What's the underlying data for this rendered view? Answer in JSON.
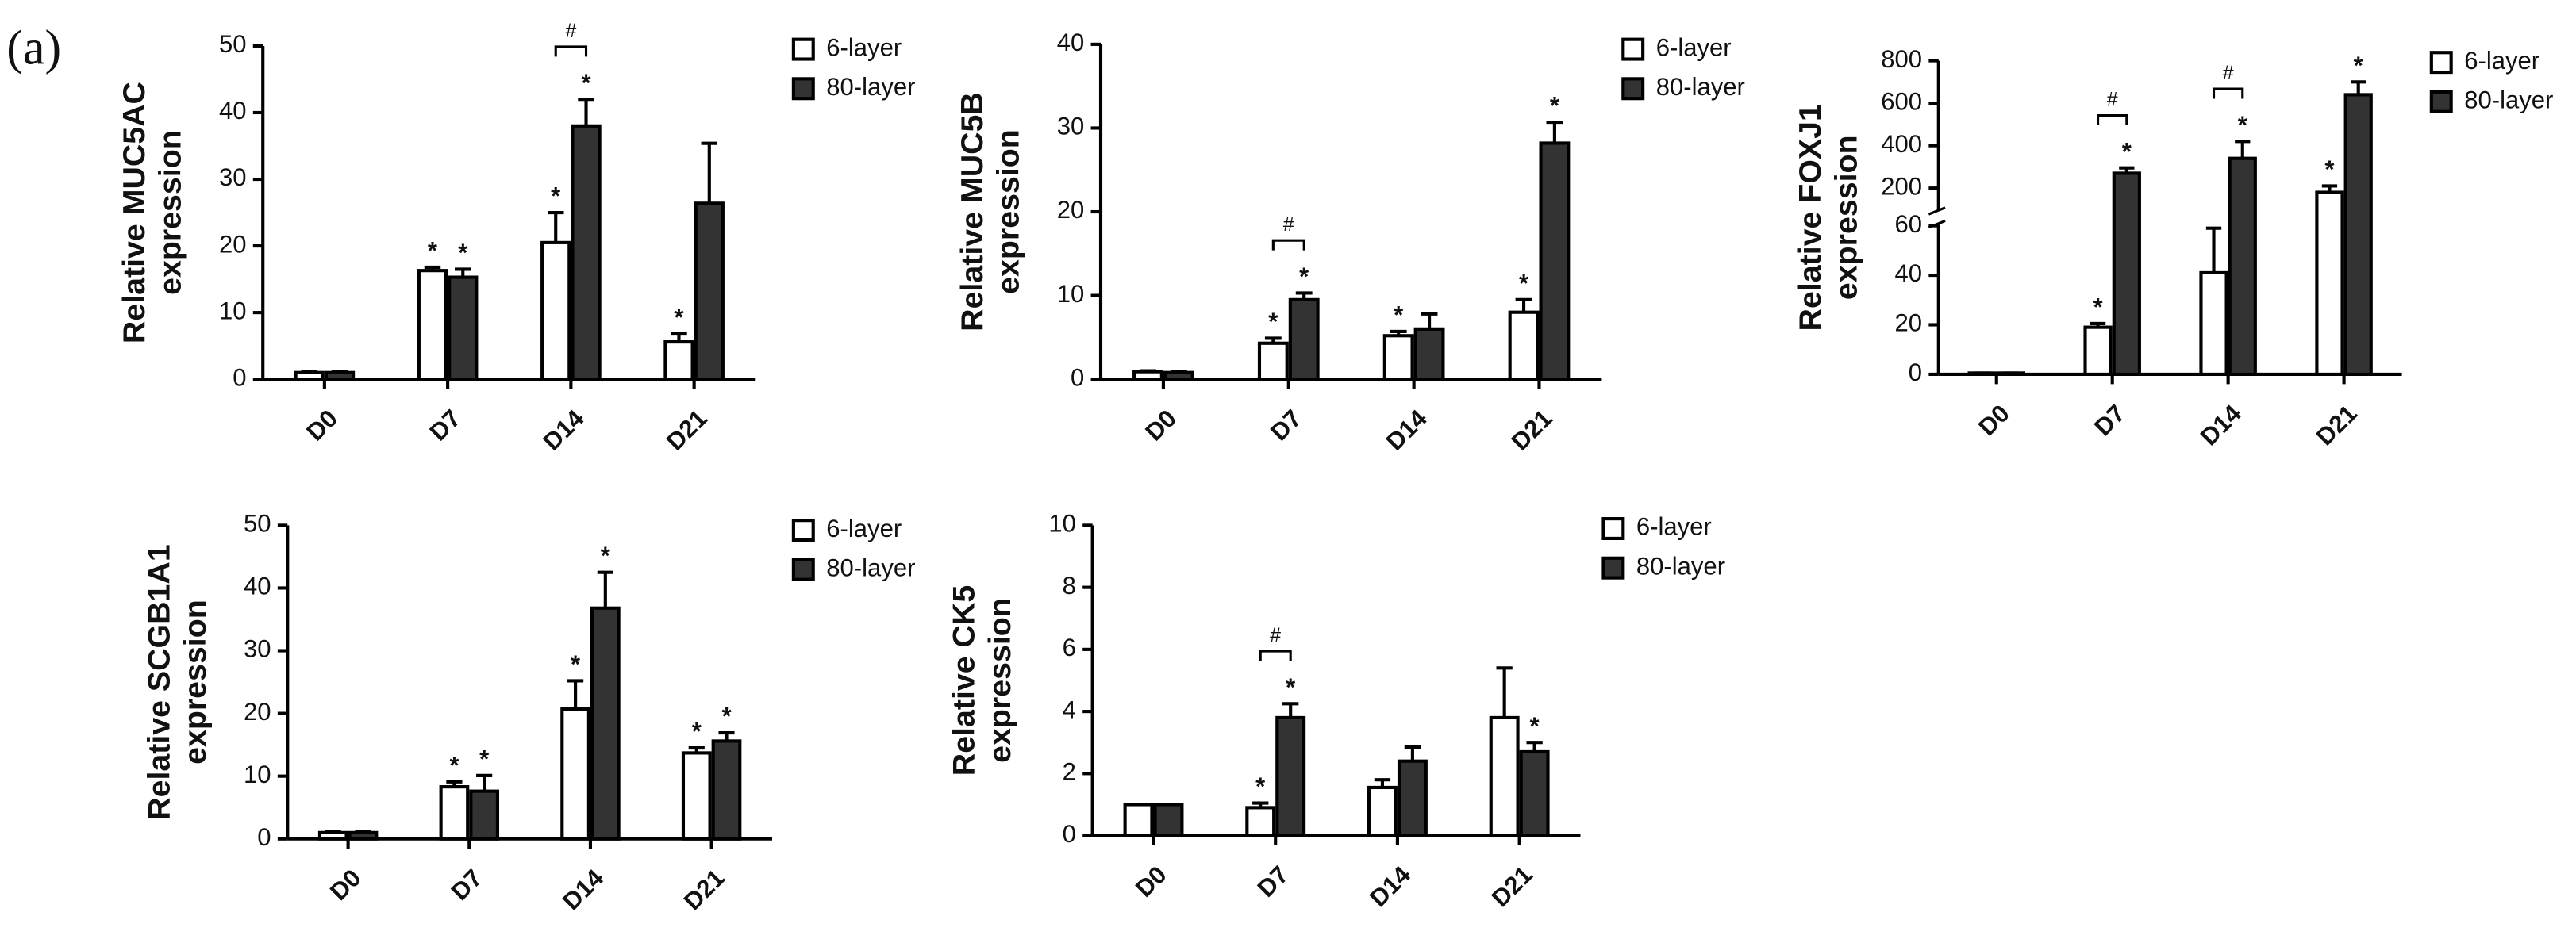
{
  "panel_label": "(a)",
  "chart_data": [
    {
      "type": "bar",
      "ylabel": [
        "Relative MUC5AC",
        "expression"
      ],
      "categories": [
        "D0",
        "D7",
        "D14",
        "D21"
      ],
      "ylim": [
        0,
        50
      ],
      "yticks": [
        0,
        10,
        20,
        30,
        40,
        50
      ],
      "series": [
        {
          "name": "6-layer",
          "color": "#ffffff",
          "values": [
            1,
            16.3,
            20.5,
            5.6
          ],
          "errors": [
            0.1,
            0.5,
            4.5,
            1.2
          ],
          "marks": [
            null,
            "*",
            "*",
            "*"
          ]
        },
        {
          "name": "80-layer",
          "color": "#333333",
          "values": [
            1,
            15.3,
            38,
            26.4
          ],
          "errors": [
            0.1,
            1.2,
            4,
            9
          ],
          "marks": [
            null,
            "*",
            "*",
            null
          ]
        }
      ],
      "significance": [
        {
          "category": 2,
          "label": "#"
        }
      ]
    },
    {
      "type": "bar",
      "ylabel": [
        "Relative MUC5B",
        "expression"
      ],
      "categories": [
        "D0",
        "D7",
        "D14",
        "D21"
      ],
      "ylim": [
        0,
        40
      ],
      "yticks": [
        0,
        10,
        20,
        30,
        40
      ],
      "series": [
        {
          "name": "6-layer",
          "color": "#ffffff",
          "values": [
            0.9,
            4.3,
            5.2,
            8
          ],
          "errors": [
            0.1,
            0.6,
            0.5,
            1.5
          ],
          "marks": [
            null,
            "*",
            "*",
            "*"
          ]
        },
        {
          "name": "80-layer",
          "color": "#333333",
          "values": [
            0.8,
            9.5,
            6,
            28.2
          ],
          "errors": [
            0.1,
            0.8,
            1.8,
            2.5
          ],
          "marks": [
            null,
            "*",
            null,
            "*"
          ]
        }
      ],
      "significance": [
        {
          "category": 1,
          "label": "#"
        }
      ]
    },
    {
      "type": "bar",
      "ylabel": [
        "Relative FOXJ1",
        "expression"
      ],
      "categories": [
        "D0",
        "D7",
        "D14",
        "D21"
      ],
      "ylim": [
        0,
        800
      ],
      "axis_break": [
        60,
        100
      ],
      "yticks": [
        0,
        20,
        40,
        60,
        200,
        400,
        600,
        800
      ],
      "series": [
        {
          "name": "6-layer",
          "color": "#ffffff",
          "values": [
            0.5,
            19,
            41,
            180
          ],
          "errors": [
            0,
            1.5,
            18,
            30
          ],
          "marks": [
            null,
            "*",
            null,
            "*"
          ]
        },
        {
          "name": "80-layer",
          "color": "#333333",
          "values": [
            0.5,
            270,
            340,
            640
          ],
          "errors": [
            0,
            25,
            80,
            60
          ],
          "marks": [
            null,
            "*",
            "*",
            "*"
          ]
        }
      ],
      "significance": [
        {
          "category": 1,
          "label": "#"
        },
        {
          "category": 2,
          "label": "#"
        }
      ]
    },
    {
      "type": "bar",
      "ylabel": [
        "Relative SCGB1A1",
        "expression"
      ],
      "categories": [
        "D0",
        "D7",
        "D14",
        "D21"
      ],
      "ylim": [
        0,
        50
      ],
      "yticks": [
        0,
        10,
        20,
        30,
        40,
        50
      ],
      "series": [
        {
          "name": "6-layer",
          "color": "#ffffff",
          "values": [
            1,
            8.3,
            20.7,
            13.7
          ],
          "errors": [
            0.1,
            0.8,
            4.5,
            0.8
          ],
          "marks": [
            null,
            "*",
            "*",
            "*"
          ]
        },
        {
          "name": "80-layer",
          "color": "#333333",
          "values": [
            1,
            7.6,
            36.8,
            15.6
          ],
          "errors": [
            0.1,
            2.5,
            5.7,
            1.3
          ],
          "marks": [
            null,
            "*",
            "*",
            "*"
          ]
        }
      ],
      "significance": []
    },
    {
      "type": "bar",
      "ylabel": [
        "Relative CK5",
        "expression"
      ],
      "categories": [
        "D0",
        "D7",
        "D14",
        "D21"
      ],
      "ylim": [
        0,
        10
      ],
      "yticks": [
        0,
        2,
        4,
        6,
        8,
        10
      ],
      "series": [
        {
          "name": "6-layer",
          "color": "#ffffff",
          "values": [
            1,
            0.9,
            1.55,
            3.8
          ],
          "errors": [
            0,
            0.15,
            0.25,
            1.6
          ],
          "marks": [
            null,
            "*",
            null,
            null
          ]
        },
        {
          "name": "80-layer",
          "color": "#333333",
          "values": [
            1,
            3.8,
            2.4,
            2.7
          ],
          "errors": [
            0,
            0.45,
            0.45,
            0.3
          ],
          "marks": [
            null,
            "*",
            null,
            "*"
          ]
        }
      ],
      "significance": [
        {
          "category": 1,
          "label": "#"
        }
      ]
    }
  ]
}
